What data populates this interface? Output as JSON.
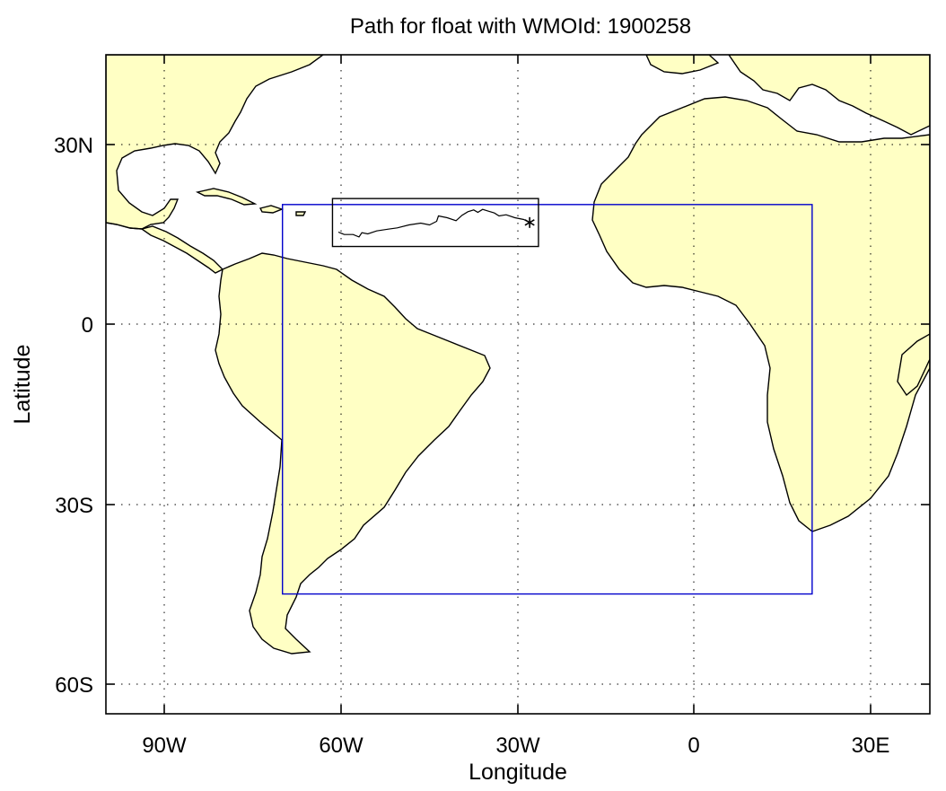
{
  "title": "Path for float with WMOId: 1900258",
  "x_axis": {
    "label": "Longitude",
    "range": [
      -100,
      40
    ],
    "ticks": [
      {
        "value": -90,
        "label": "90W"
      },
      {
        "value": -60,
        "label": "60W"
      },
      {
        "value": -30,
        "label": "30W"
      },
      {
        "value": 0,
        "label": "0"
      },
      {
        "value": 30,
        "label": "30E"
      }
    ]
  },
  "y_axis": {
    "label": "Latitude",
    "range": [
      -65,
      45
    ],
    "ticks": [
      {
        "value": 30,
        "label": "30N"
      },
      {
        "value": 0,
        "label": "0"
      },
      {
        "value": -30,
        "label": "30S"
      },
      {
        "value": -60,
        "label": "60S"
      }
    ]
  },
  "grid": "dotted",
  "colors": {
    "land": "#ffffc4",
    "coast": "#000000",
    "region_box": "#0000cc",
    "track_box": "#000000",
    "track": "#000000"
  },
  "region_box": {
    "lon_min": -70,
    "lon_max": 20,
    "lat_min": -45,
    "lat_max": 20
  },
  "track_box": {
    "lon_min": -61.5,
    "lon_max": -26.5,
    "lat_min": 13,
    "lat_max": 21
  },
  "float_track": {
    "start_marker": "asterisk",
    "start": {
      "lon": -28,
      "lat": 17
    },
    "points": [
      [
        -28,
        17
      ],
      [
        -29,
        17.5
      ],
      [
        -30.5,
        17.8
      ],
      [
        -32,
        18.3
      ],
      [
        -33.2,
        18.1
      ],
      [
        -34,
        18.6
      ],
      [
        -35,
        18.9
      ],
      [
        -36,
        19.2
      ],
      [
        -36.8,
        18.7
      ],
      [
        -37.5,
        19.1
      ],
      [
        -38.5,
        18.8
      ],
      [
        -39.5,
        18.2
      ],
      [
        -40.5,
        17.3
      ],
      [
        -42,
        17.8
      ],
      [
        -43.5,
        18.1
      ],
      [
        -43.8,
        17.2
      ],
      [
        -45,
        16.6
      ],
      [
        -46.5,
        16.9
      ],
      [
        -48.5,
        16.6
      ],
      [
        -50.5,
        16.1
      ],
      [
        -52,
        15.9
      ],
      [
        -54,
        15.6
      ],
      [
        -55.5,
        15.1
      ],
      [
        -56.5,
        15.3
      ],
      [
        -57,
        14.6
      ],
      [
        -58,
        15.0
      ],
      [
        -59.5,
        15.0
      ],
      [
        -60.5,
        15.4
      ]
    ]
  }
}
